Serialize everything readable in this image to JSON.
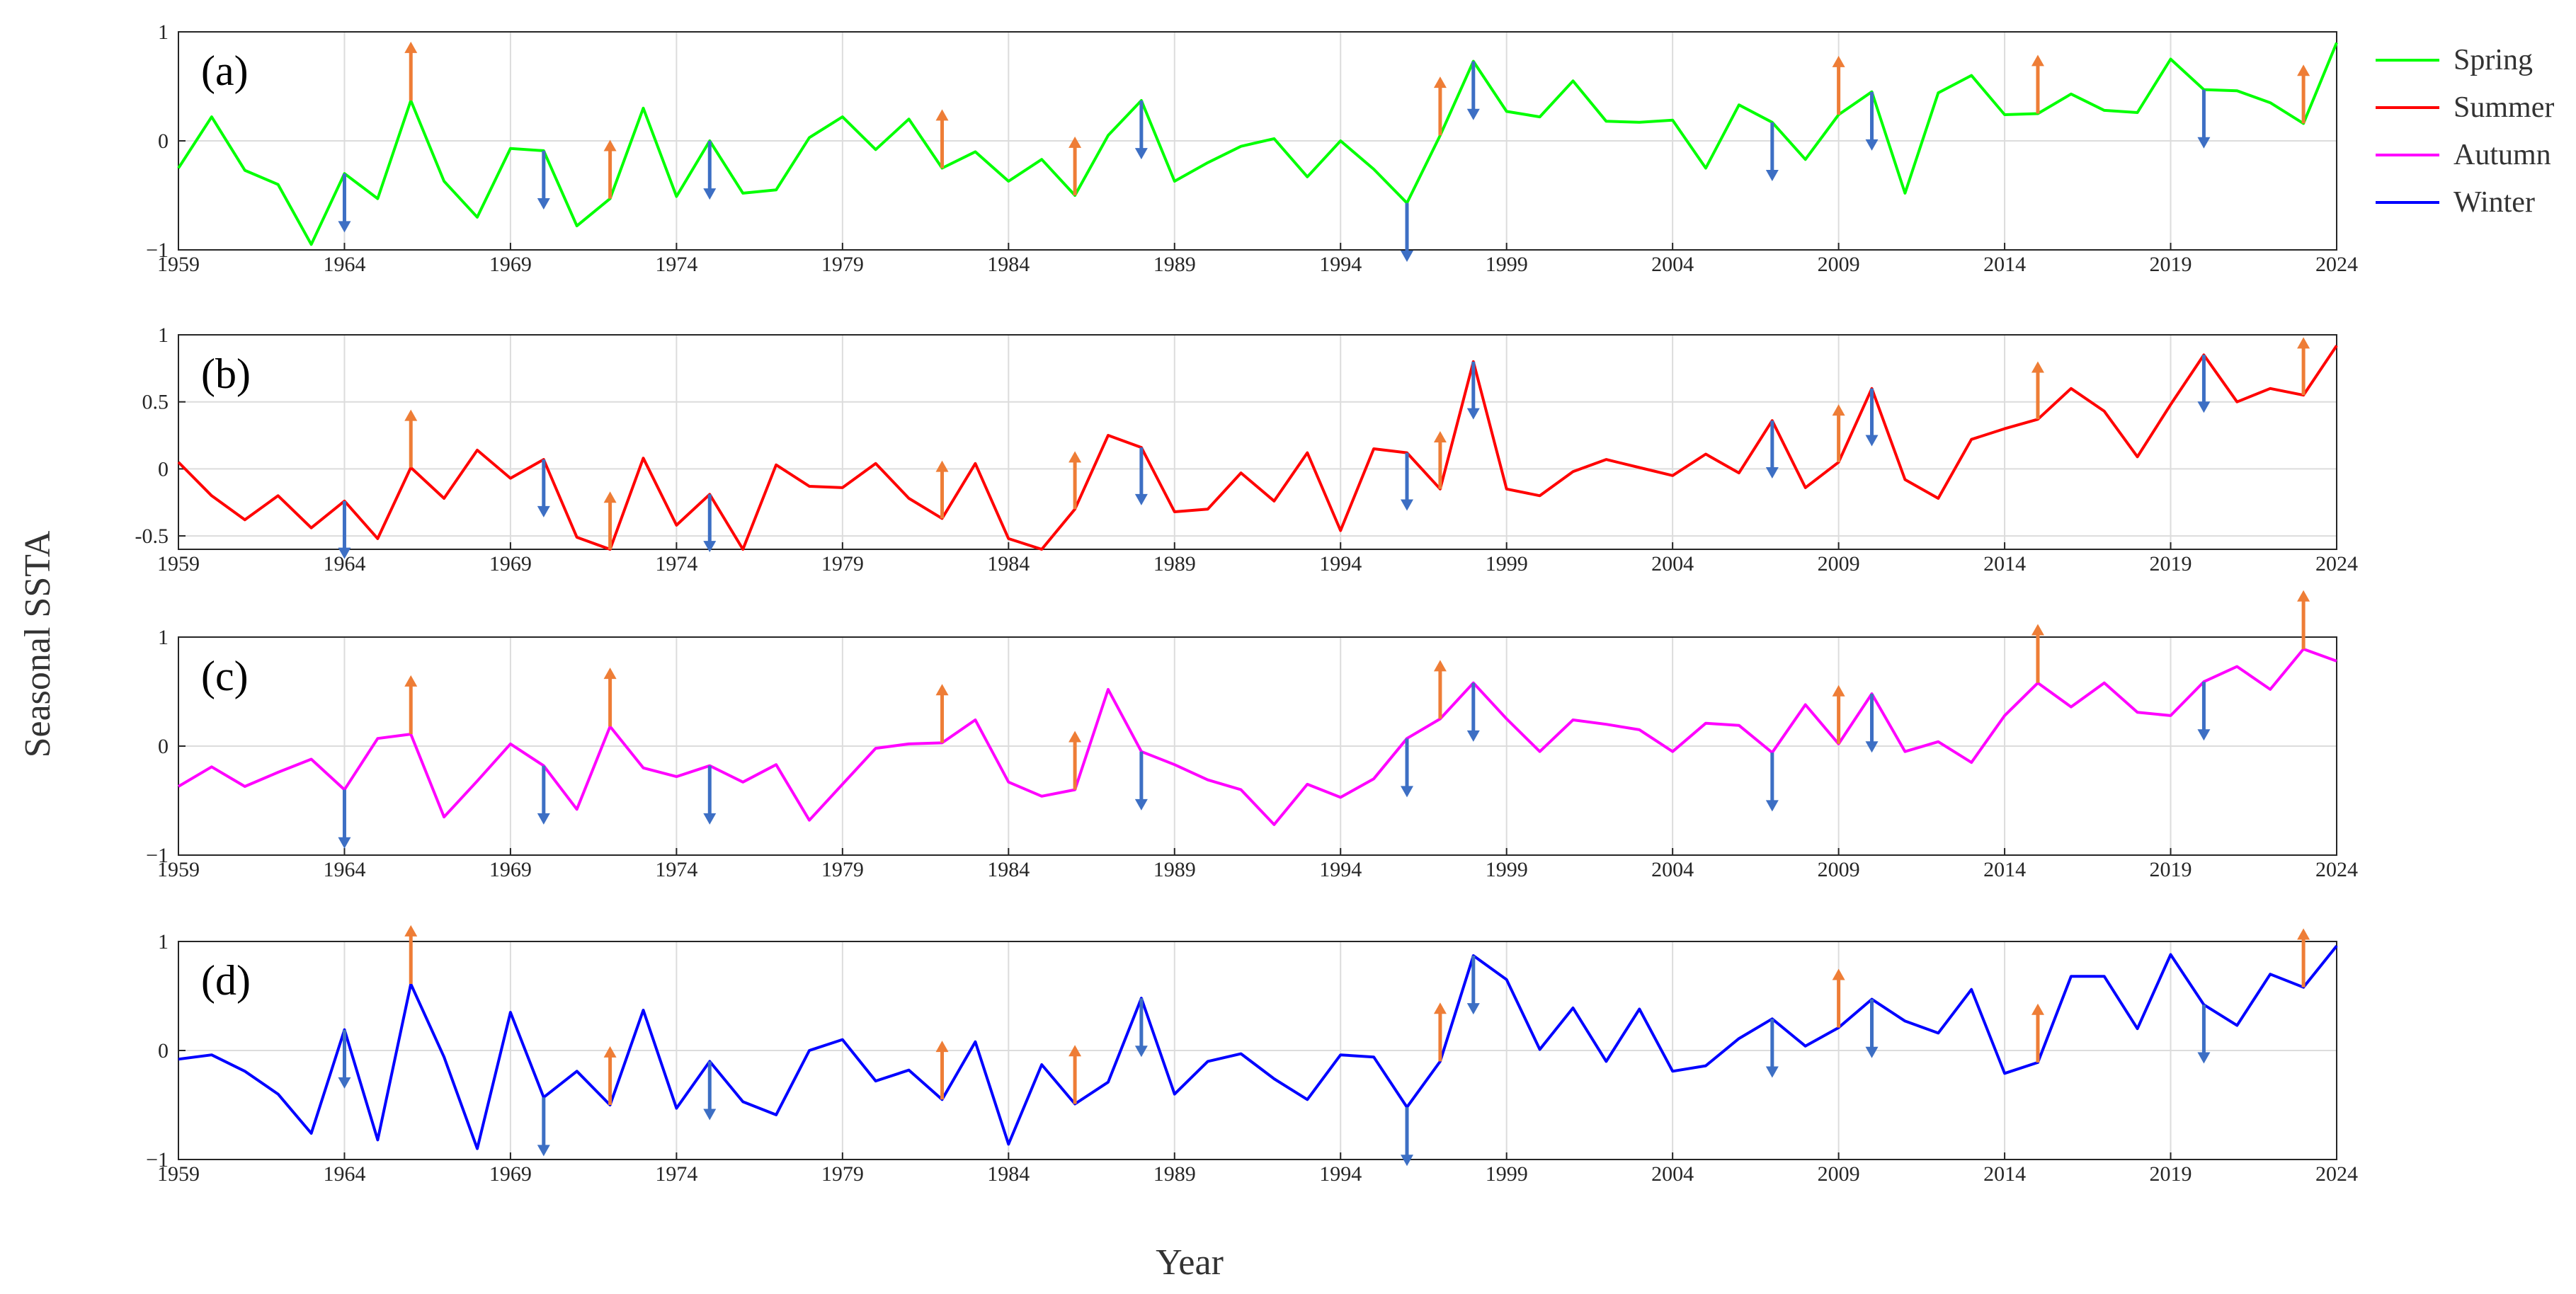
{
  "chart_data": {
    "type": "line",
    "figure": {
      "ylabel": "Seasonal SSTA",
      "xlabel": "Year",
      "xlim": [
        1959,
        2024
      ],
      "xticks": [
        1959,
        1964,
        1969,
        1974,
        1979,
        1984,
        1989,
        1994,
        1999,
        2004,
        2009,
        2014,
        2019,
        2024
      ],
      "legend": {
        "placement": "top-right outside",
        "entries": [
          {
            "name": "Spring",
            "color": "#00ff00"
          },
          {
            "name": "Summer",
            "color": "#ff0000"
          },
          {
            "name": "Autumn",
            "color": "#ff00ff"
          },
          {
            "name": "Winter",
            "color": "#0000ff"
          }
        ]
      },
      "arrow_colors": {
        "el_nino_up": "#ee7d36",
        "la_nina_down": "#3d6fc4"
      },
      "arrow_length_fraction_of_range": 0.27
    },
    "panels": [
      {
        "label": "(a)",
        "series": "Spring",
        "color": "#00ff00",
        "ylim": [
          -1,
          1
        ],
        "yticks": [
          {
            "value": -1,
            "label": "−1"
          },
          {
            "value": 0,
            "label": "0"
          },
          {
            "value": 1,
            "label": "1"
          }
        ],
        "values": [
          -0.25,
          0.22,
          -0.27,
          -0.4,
          -0.95,
          -0.3,
          -0.53,
          0.37,
          -0.37,
          -0.7,
          -0.07,
          -0.09,
          -0.78,
          -0.53,
          0.3,
          -0.51,
          0.0,
          -0.48,
          -0.45,
          0.03,
          0.22,
          -0.08,
          0.2,
          -0.25,
          -0.1,
          -0.37,
          -0.17,
          -0.5,
          0.05,
          0.37,
          -0.37,
          -0.2,
          -0.05,
          0.02,
          -0.33,
          0.0,
          -0.26,
          -0.57,
          0.05,
          0.73,
          0.27,
          0.22,
          0.55,
          0.18,
          0.17,
          0.19,
          -0.25,
          0.33,
          0.17,
          -0.17,
          0.24,
          0.45,
          -0.48,
          0.44,
          0.6,
          0.24,
          0.25,
          0.43,
          0.28,
          0.26,
          0.75,
          0.47,
          0.46,
          0.35,
          0.16,
          0.9
        ],
        "up_arrows": [
          1966,
          1972,
          1982,
          1986,
          1997,
          2009,
          2015,
          2023
        ],
        "down_arrows": [
          1964,
          1970,
          1975,
          1988,
          1996,
          1998,
          2007,
          2010,
          2020
        ]
      },
      {
        "label": "(b)",
        "series": "Summer",
        "color": "#ff0000",
        "ylim": [
          -0.6,
          1
        ],
        "yticks": [
          {
            "value": -0.5,
            "label": "-0.5"
          },
          {
            "value": 0,
            "label": "0"
          },
          {
            "value": 0.5,
            "label": "0.5"
          },
          {
            "value": 1,
            "label": "1"
          }
        ],
        "values": [
          0.05,
          -0.2,
          -0.38,
          -0.2,
          -0.44,
          -0.24,
          -0.52,
          0.01,
          -0.22,
          0.14,
          -0.07,
          0.07,
          -0.51,
          -0.6,
          0.08,
          -0.42,
          -0.19,
          -0.6,
          0.03,
          -0.13,
          -0.14,
          0.04,
          -0.22,
          -0.37,
          0.04,
          -0.52,
          -0.6,
          -0.3,
          0.25,
          0.16,
          -0.32,
          -0.3,
          -0.03,
          -0.24,
          0.12,
          -0.46,
          0.15,
          0.12,
          -0.15,
          0.8,
          -0.15,
          -0.2,
          -0.02,
          0.07,
          0.01,
          -0.05,
          0.11,
          -0.03,
          0.36,
          -0.14,
          0.05,
          0.6,
          -0.08,
          -0.22,
          0.22,
          0.3,
          0.37,
          0.6,
          0.43,
          0.09,
          0.48,
          0.85,
          0.5,
          0.6,
          0.55,
          0.92
        ],
        "up_arrows": [
          1966,
          1972,
          1982,
          1986,
          1997,
          2009,
          2015,
          2023
        ],
        "down_arrows": [
          1964,
          1970,
          1975,
          1988,
          1996,
          1998,
          2007,
          2010,
          2020
        ]
      },
      {
        "label": "(c)",
        "series": "Autumn",
        "color": "#ff00ff",
        "ylim": [
          -1,
          1
        ],
        "yticks": [
          {
            "value": -1,
            "label": "−1"
          },
          {
            "value": 0,
            "label": "0"
          },
          {
            "value": 1,
            "label": "1"
          }
        ],
        "values": [
          -0.37,
          -0.19,
          -0.37,
          -0.24,
          -0.12,
          -0.4,
          0.07,
          0.11,
          -0.65,
          -0.32,
          0.02,
          -0.18,
          -0.58,
          0.18,
          -0.2,
          -0.28,
          -0.18,
          -0.33,
          -0.17,
          -0.68,
          -0.35,
          -0.02,
          0.02,
          0.03,
          0.24,
          -0.33,
          -0.46,
          -0.4,
          0.52,
          -0.05,
          -0.17,
          -0.31,
          -0.4,
          -0.72,
          -0.35,
          -0.47,
          -0.3,
          0.07,
          0.25,
          0.58,
          0.25,
          -0.05,
          0.24,
          0.2,
          0.15,
          -0.05,
          0.21,
          0.19,
          -0.06,
          0.38,
          0.02,
          0.48,
          -0.05,
          0.04,
          -0.15,
          0.28,
          0.58,
          0.36,
          0.58,
          0.31,
          0.28,
          0.59,
          0.73,
          0.52,
          0.89,
          0.78
        ],
        "up_arrows": [
          1966,
          1972,
          1982,
          1986,
          1997,
          2009,
          2015,
          2023
        ],
        "down_arrows": [
          1964,
          1970,
          1975,
          1988,
          1996,
          1998,
          2007,
          2010,
          2020
        ]
      },
      {
        "label": "(d)",
        "series": "Winter",
        "color": "#0000ff",
        "ylim": [
          -1,
          1
        ],
        "yticks": [
          {
            "value": -1,
            "label": "−1"
          },
          {
            "value": 0,
            "label": "0"
          },
          {
            "value": 1,
            "label": "1"
          }
        ],
        "values": [
          -0.08,
          -0.04,
          -0.19,
          -0.4,
          -0.76,
          0.19,
          -0.82,
          0.61,
          -0.06,
          -0.9,
          0.35,
          -0.43,
          -0.19,
          -0.5,
          0.37,
          -0.53,
          -0.1,
          -0.47,
          -0.59,
          0.0,
          0.1,
          -0.28,
          -0.18,
          -0.45,
          0.08,
          -0.86,
          -0.13,
          -0.49,
          -0.29,
          0.48,
          -0.4,
          -0.1,
          -0.03,
          -0.26,
          -0.45,
          -0.04,
          -0.06,
          -0.52,
          -0.1,
          0.87,
          0.65,
          0.01,
          0.39,
          -0.1,
          0.38,
          -0.19,
          -0.14,
          0.11,
          0.29,
          0.04,
          0.21,
          0.47,
          0.27,
          0.16,
          0.56,
          -0.21,
          -0.11,
          0.68,
          0.68,
          0.2,
          0.88,
          0.42,
          0.23,
          0.7,
          0.58,
          0.96
        ],
        "up_arrows": [
          1966,
          1972,
          1982,
          1986,
          1997,
          2009,
          2015,
          2023
        ],
        "down_arrows": [
          1964,
          1970,
          1975,
          1988,
          1996,
          1998,
          2007,
          2010,
          2020
        ]
      }
    ]
  }
}
